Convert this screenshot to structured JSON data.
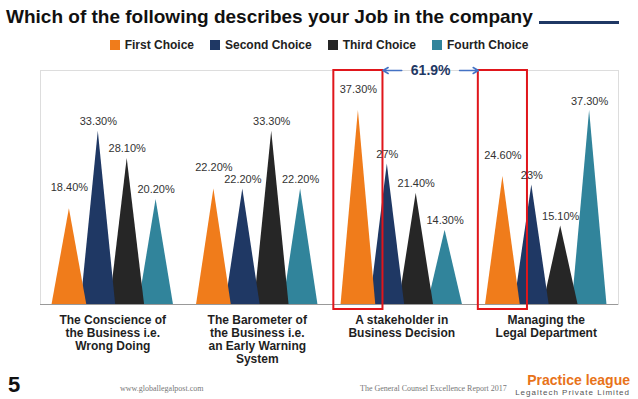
{
  "chart_data": {
    "type": "bar",
    "title": "Which of the following describes your Job in the company",
    "categories": [
      "The Conscience of\nthe Business i.e.\nWrong Doing",
      "The Barometer of\nthe Business i.e.\nan Early Warning\nSystem",
      "A stakeholder in\nBusiness Decision",
      "Managing the\nLegal Department"
    ],
    "series": [
      {
        "name": "First Choice",
        "color": "#f07c1b",
        "values": [
          18.4,
          22.2,
          37.3,
          24.6
        ],
        "value_labels": [
          "18.40%",
          "22.20%",
          "37.30%",
          "24.60%"
        ]
      },
      {
        "name": "Second Choice",
        "color": "#1f3864",
        "values": [
          33.3,
          22.2,
          27,
          23
        ],
        "value_labels": [
          "33.30%",
          "22.20%",
          "27%",
          "23%"
        ]
      },
      {
        "name": "Third Choice",
        "color": "#262626",
        "values": [
          28.1,
          33.3,
          21.4,
          15.1
        ],
        "value_labels": [
          "28.10%",
          "33.30%",
          "21.40%",
          "15.10%"
        ]
      },
      {
        "name": "Fourth Choice",
        "color": "#31849b",
        "values": [
          20.2,
          22.2,
          14.3,
          37.3
        ],
        "value_labels": [
          "20.20%",
          "22.20%",
          "14.30%",
          "37.30%"
        ]
      }
    ],
    "ylim": [
      0,
      45
    ],
    "data_labels": true,
    "tick_labels": "x",
    "legend": "top",
    "annotations": [
      {
        "text": "61.9%",
        "categories": [
          "A stakeholder in\nBusiness Decision",
          "Managing the\nLegal Department"
        ]
      }
    ]
  },
  "page": {
    "number": "5",
    "source": "www.globallegalpost.com",
    "report": "The General Counsel Excellence Report 2017",
    "brand": "Practice league",
    "brand_sub": "Legaltech Private Limited"
  }
}
